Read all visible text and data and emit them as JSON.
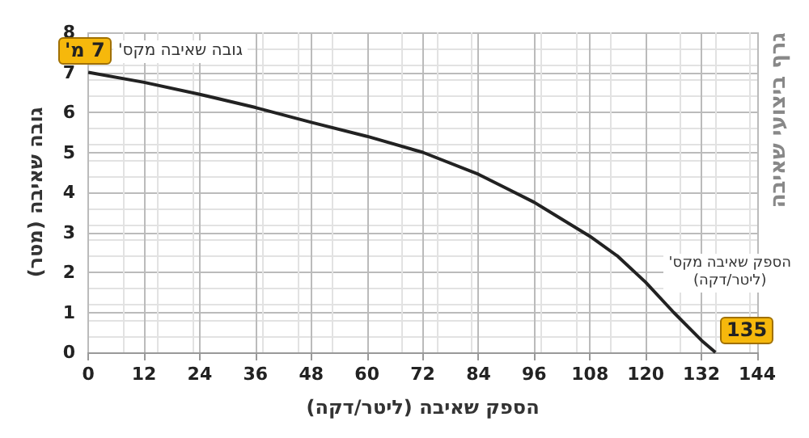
{
  "chart_data": {
    "type": "line",
    "title": "גרף ביצועי שאיבה",
    "xlabel": "הספק שאיבה (ליטר/דקה)",
    "ylabel": "גובה שאיבה (מטר)",
    "x": [
      0,
      12,
      24,
      36,
      48,
      60,
      72,
      84,
      90,
      96,
      108,
      114,
      120,
      126,
      132,
      135
    ],
    "series": [
      {
        "color": "#222222",
        "values": [
          7,
          6.75,
          6.45,
          6.12,
          5.75,
          5.4,
          5.0,
          4.45,
          4.1,
          3.75,
          2.9,
          2.4,
          1.75,
          1.0,
          0.3,
          0
        ]
      }
    ],
    "xlim": [
      0,
      144
    ],
    "xticks": [
      0,
      12,
      24,
      36,
      48,
      60,
      72,
      84,
      96,
      108,
      120,
      132,
      144
    ],
    "ylim": [
      0,
      8
    ],
    "yticks": [
      0,
      1,
      2,
      3,
      4,
      5,
      6,
      7,
      8
    ],
    "grid": true,
    "marker": "none",
    "line_style": "solid",
    "annotations": [
      "גובה שאיבה מקס'",
      "7 מ'",
      "הספק שאיבה מקס'\n(ליטר/דקה)",
      "135"
    ]
  }
}
